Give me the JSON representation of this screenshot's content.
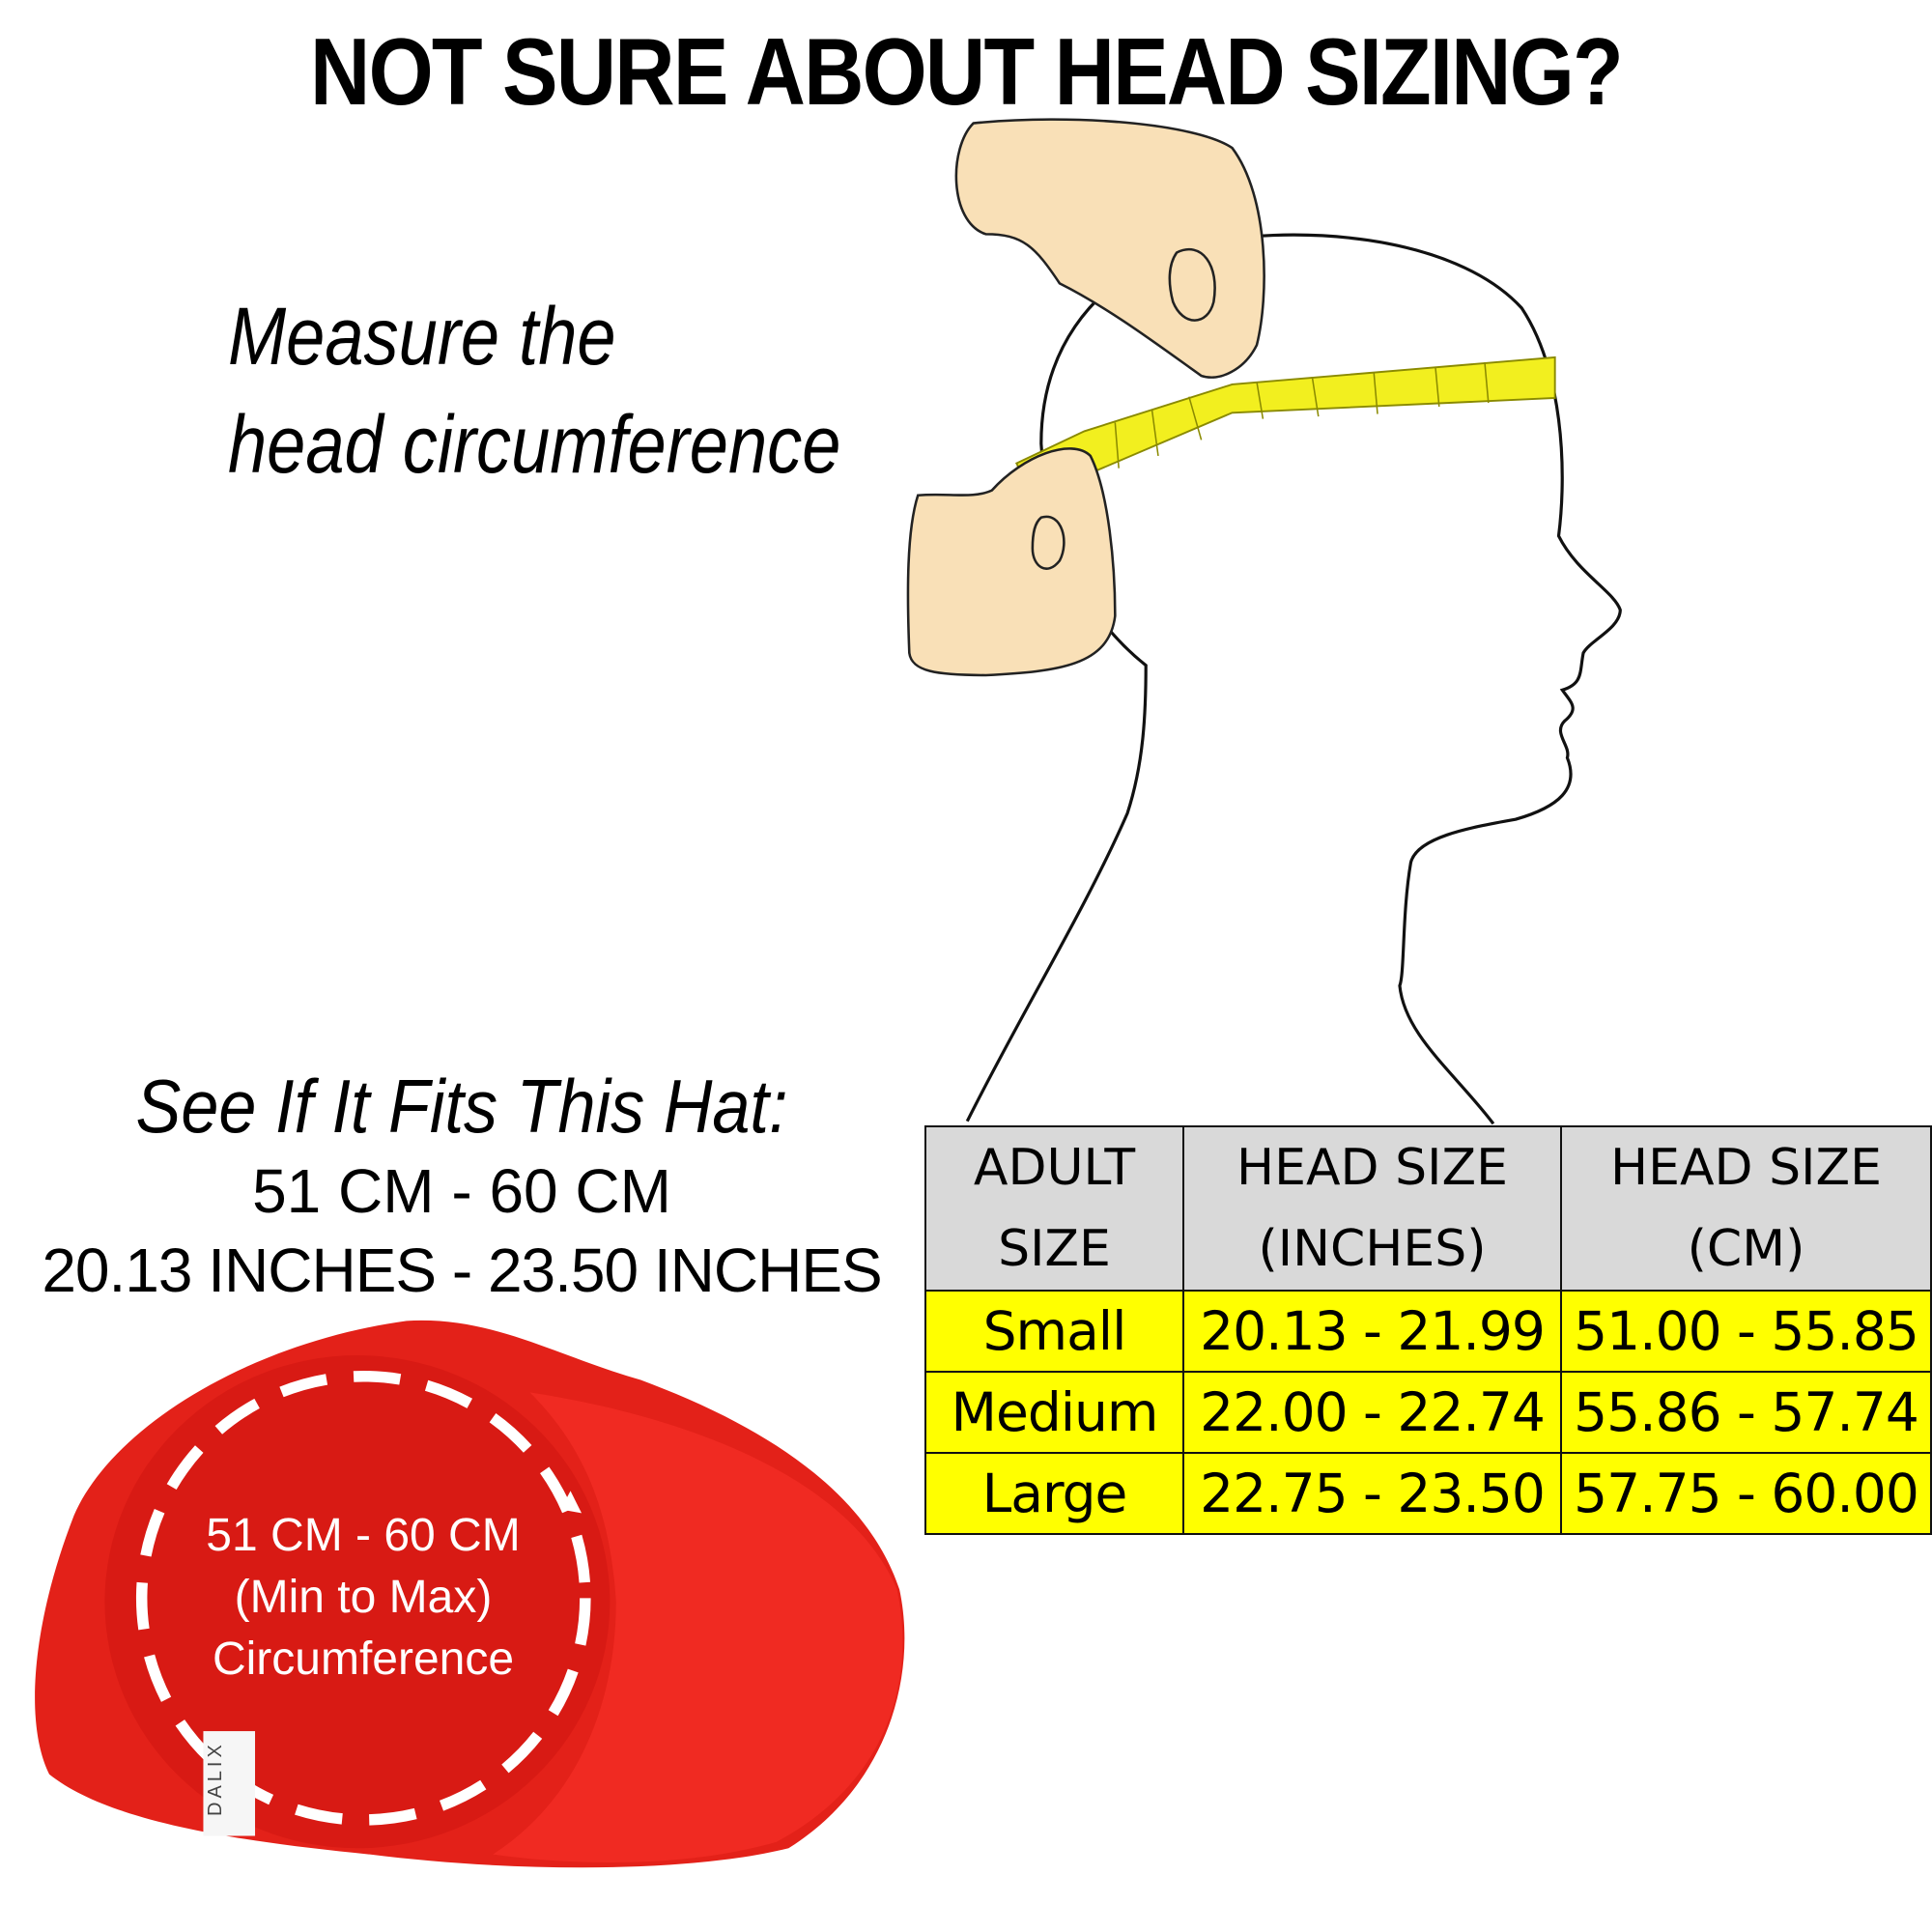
{
  "title": "NOT SURE ABOUT HEAD SIZING?",
  "instruction": {
    "line1": "Measure the",
    "line2": "head circumference"
  },
  "fit": {
    "heading": "See If It Fits This Hat:",
    "cm_range": "51 CM - 60 CM",
    "inch_range": "20.13 INCHES -  23.50 INCHES"
  },
  "hat_label": {
    "line1": "51 CM - 60 CM",
    "line2": "(Min to Max)",
    "line3": "Circumference",
    "brand": "DALIX"
  },
  "table": {
    "headers": [
      {
        "line1": "ADULT",
        "line2": "SIZE"
      },
      {
        "line1": "HEAD SIZE",
        "line2": "(INCHES)"
      },
      {
        "line1": "HEAD SIZE",
        "line2": "(CM)"
      }
    ],
    "rows": [
      [
        "Small",
        "20.13 - 21.99",
        "51.00 - 55.85"
      ],
      [
        "Medium",
        "22.00 - 22.74",
        "55.86 - 57.74"
      ],
      [
        "Large",
        "22.75 - 23.50",
        "57.75 - 60.00"
      ]
    ]
  },
  "colors": {
    "hat": "#e8231e",
    "tape": "#f2ef1f",
    "hand": "#f9e0b7",
    "table_header": "#d9d9d9",
    "table_body": "#ffff00"
  }
}
